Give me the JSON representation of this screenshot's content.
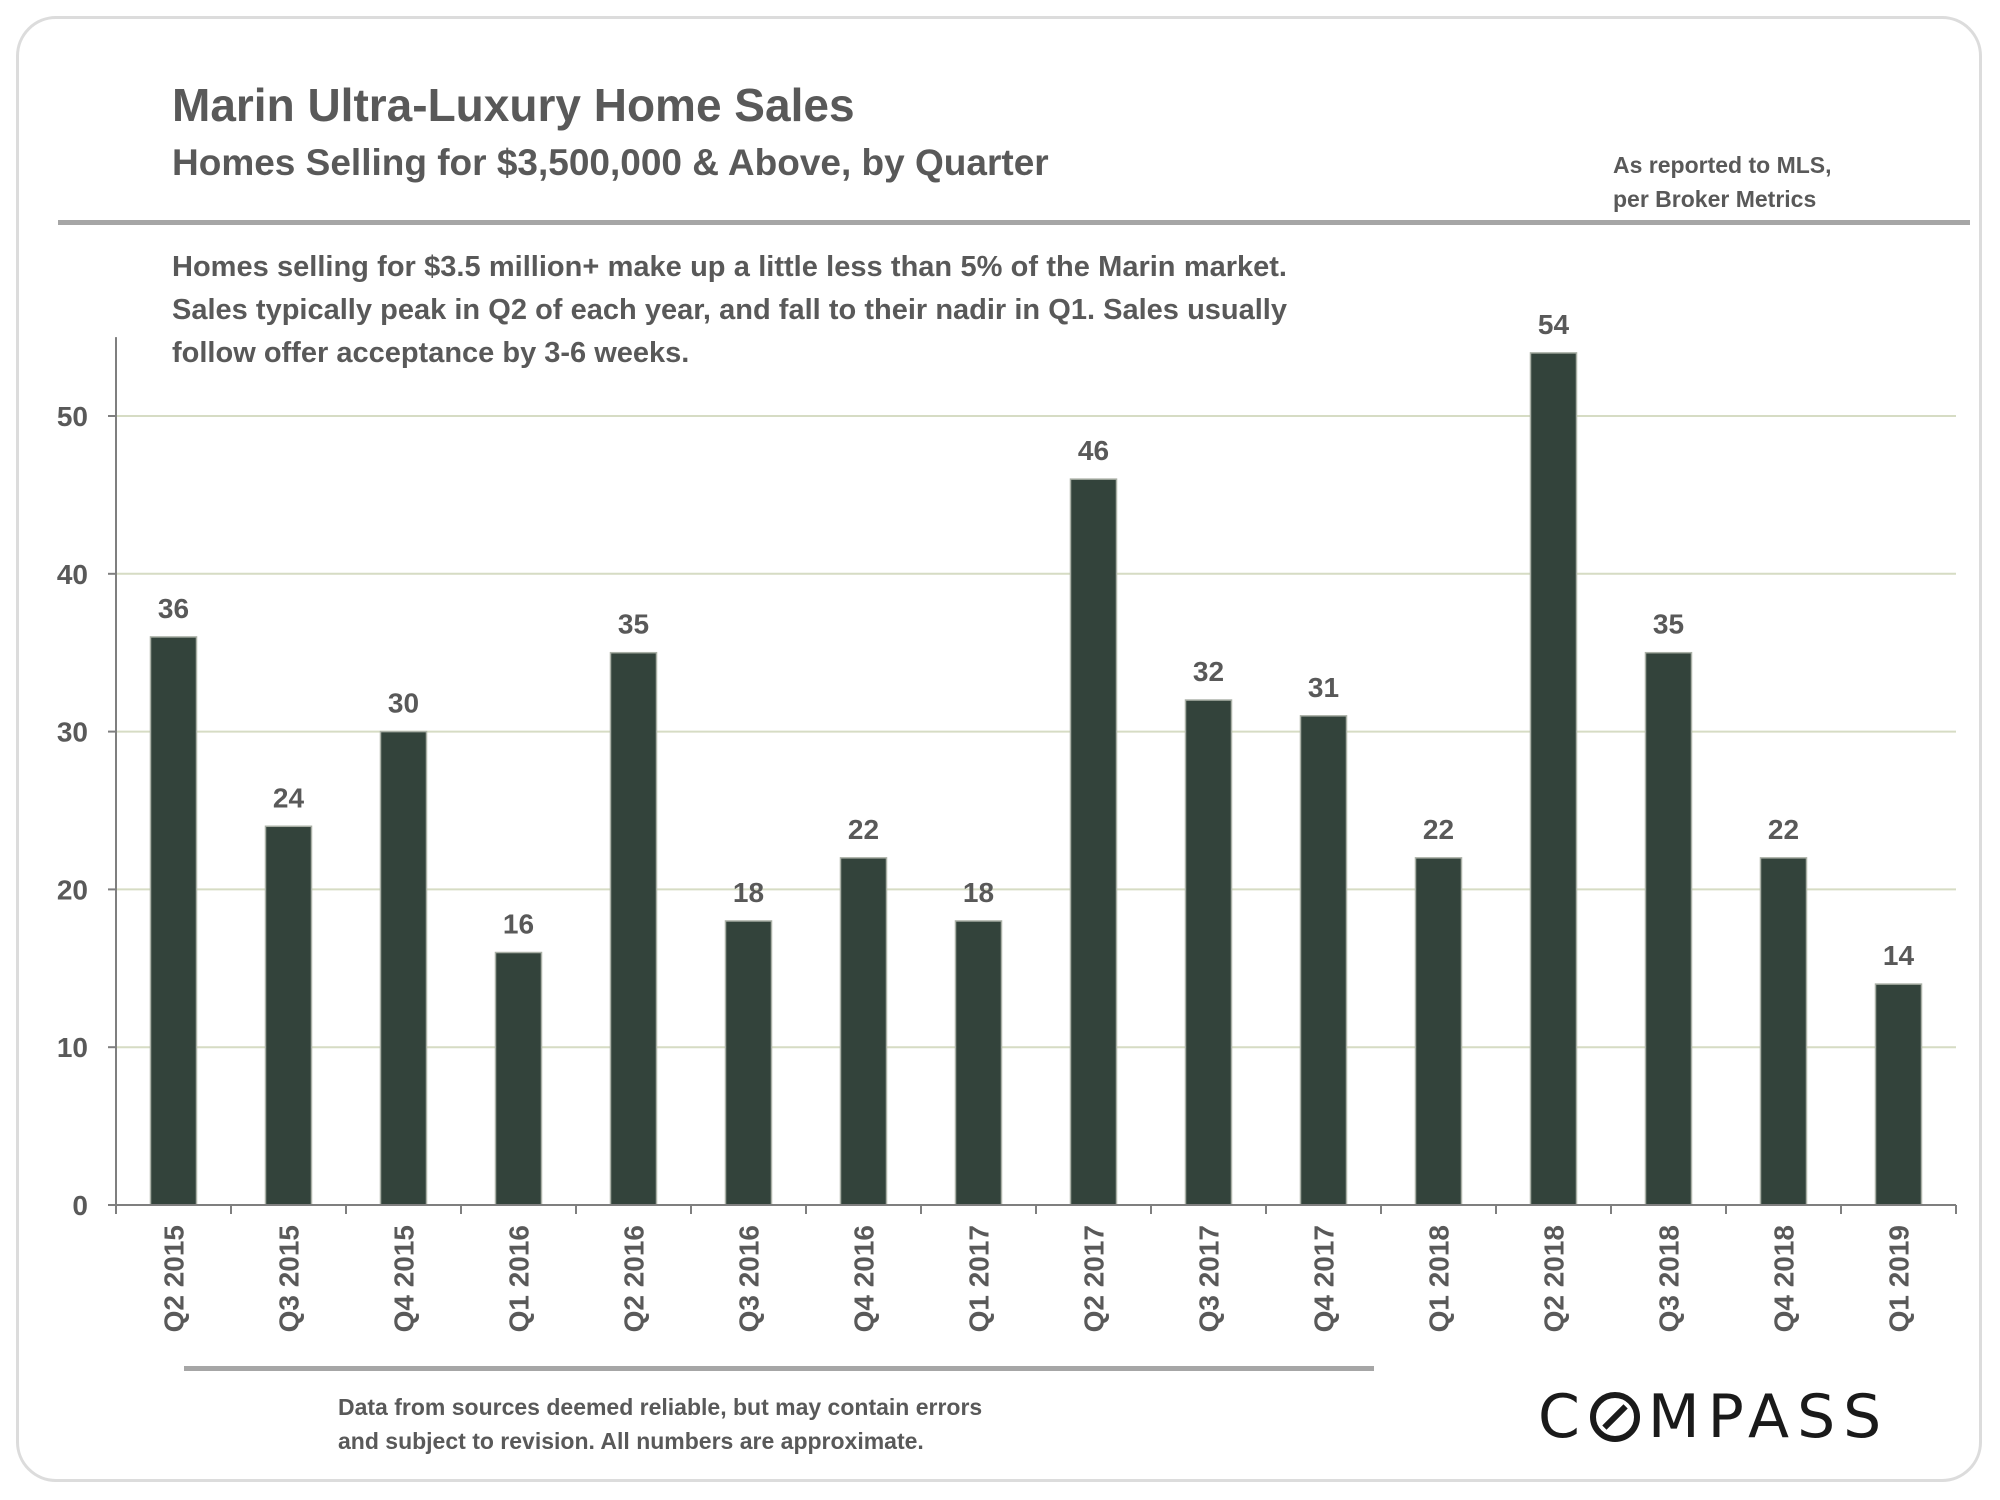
{
  "header": {
    "title": "Marin Ultra-Luxury Home Sales",
    "subtitle": "Homes Selling for $3,500,000 & Above, by Quarter",
    "source_line1": "As reported to MLS,",
    "source_line2": "per Broker Metrics"
  },
  "description": "Homes selling for $3.5 million+ make up a little less than 5% of the Marin market. Sales typically peak in Q2 of each year, and fall to their nadir in Q1. Sales usually follow offer acceptance by 3-6 weeks.",
  "footer": {
    "disclaimer_line1": "Data from sources deemed reliable, but may contain errors",
    "disclaimer_line2": "and subject to revision. All numbers are approximate.",
    "logo_c": "C",
    "logo_rest": "MPASS"
  },
  "colors": {
    "bar": "#33433b",
    "grid": "#d6dcc4",
    "axis": "#7f7f7f",
    "text": "#595959"
  },
  "chart_data": {
    "type": "bar",
    "title": "Marin Ultra-Luxury Home Sales",
    "subtitle": "Homes Selling for $3,500,000 & Above, by Quarter",
    "xlabel": "",
    "ylabel": "",
    "categories": [
      "Q2 2015",
      "Q3 2015",
      "Q4 2015",
      "Q1 2016",
      "Q2 2016",
      "Q3 2016",
      "Q4 2016",
      "Q1 2017",
      "Q2 2017",
      "Q3 2017",
      "Q4 2017",
      "Q1 2018",
      "Q2 2018",
      "Q3 2018",
      "Q4 2018",
      "Q1 2019"
    ],
    "values": [
      36,
      24,
      30,
      16,
      35,
      18,
      22,
      18,
      46,
      32,
      31,
      22,
      54,
      35,
      22,
      14
    ],
    "ylim": [
      0,
      55
    ],
    "yticks": [
      0,
      10,
      20,
      30,
      40,
      50
    ],
    "grid": true,
    "data_labels": true,
    "legend": "none"
  }
}
